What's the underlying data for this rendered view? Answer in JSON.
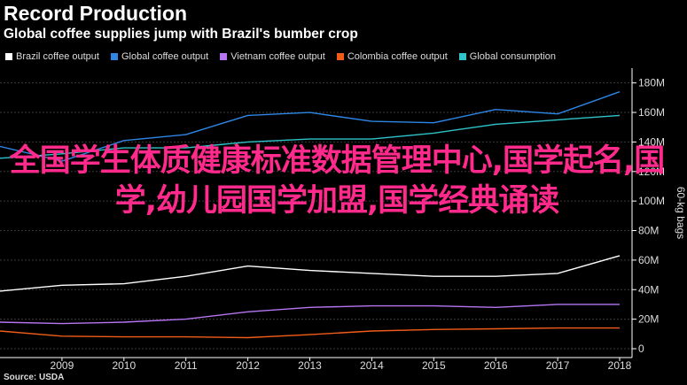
{
  "header": {
    "title": "Record Production",
    "subtitle": "Global coffee supplies jump with Brazil's bumber crop"
  },
  "source": "Source: USDA",
  "overlay_text": "全国学生体质健康标准数据管理中心,国学起名,国学,幼儿园国学加盟,国学经典诵读",
  "chart_data": {
    "type": "line",
    "title": "Record Production",
    "subtitle": "Global coffee supplies jump with Brazil's bumber crop",
    "xlabel": "",
    "ylabel": "60-kg bags",
    "x": [
      2008,
      2009,
      2010,
      2011,
      2012,
      2013,
      2014,
      2015,
      2016,
      2017,
      2018
    ],
    "xticks": [
      "2009",
      "2010",
      "2011",
      "2012",
      "2013",
      "2014",
      "2015",
      "2016",
      "2017",
      "2018"
    ],
    "xlim": [
      2008,
      2018.2
    ],
    "yticks": [
      0,
      20,
      40,
      60,
      80,
      100,
      120,
      140,
      160,
      180
    ],
    "ytick_labels": [
      "0",
      "20M",
      "40M",
      "60M",
      "80M",
      "100M",
      "120M",
      "140M",
      "160M",
      "180M"
    ],
    "ylim": [
      -6,
      190
    ],
    "y_axis_side": "right",
    "legend_position": "top",
    "grid": true,
    "series": [
      {
        "name": "Brazil coffee output",
        "color": "#ffffff",
        "values": [
          39,
          43,
          44,
          49,
          56,
          53,
          51,
          49,
          49,
          51,
          63
        ]
      },
      {
        "name": "Global coffee output",
        "color": "#2e86e6",
        "values": [
          137,
          127,
          141,
          145,
          158,
          160,
          154,
          153,
          162,
          159,
          174
        ]
      },
      {
        "name": "Vietnam coffee output",
        "color": "#b675f2",
        "values": [
          18,
          17,
          18,
          20,
          25,
          28,
          29,
          29,
          28,
          30,
          30
        ]
      },
      {
        "name": "Colombia coffee output",
        "color": "#f25c19",
        "values": [
          12,
          8.5,
          8,
          8,
          7.5,
          9.5,
          12,
          13,
          13.5,
          14,
          14
        ]
      },
      {
        "name": "Global consumption",
        "color": "#2ec4c9",
        "values": [
          129,
          132,
          136,
          136,
          140,
          142,
          142,
          146,
          152,
          155,
          158
        ]
      }
    ]
  }
}
